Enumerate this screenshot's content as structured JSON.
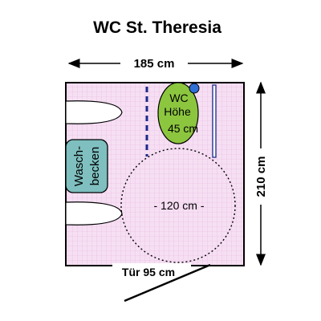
{
  "title": "WC St. Theresia",
  "dimensions": {
    "width_label": "185 cm",
    "height_label": "210 cm",
    "door_label": "Tür 95 cm"
  },
  "toilet": {
    "line1": "WC",
    "line2": "Höhe",
    "line3": "45 cm"
  },
  "sink": {
    "line1": "Wasch-",
    "line2": "becken"
  },
  "turning_circle": {
    "label": "- 120 cm -"
  },
  "colors": {
    "floor": "#f6dff3",
    "grid": "#e6b8e0",
    "toilet": "#8cc63f",
    "sink": "#7fbfbf",
    "handrail": "#1a2a8a",
    "knob": "#2f6fd6"
  }
}
